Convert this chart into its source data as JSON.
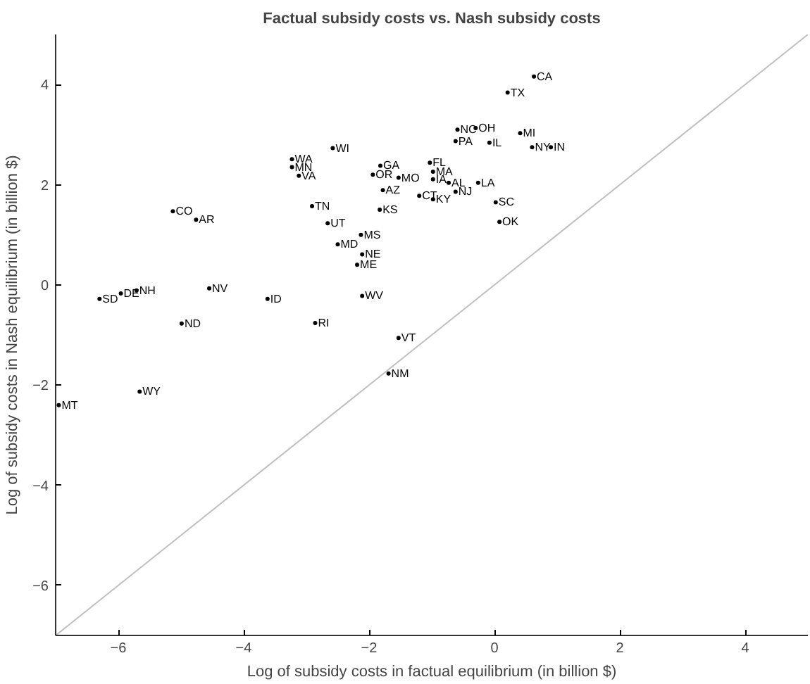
{
  "chart_data": {
    "type": "scatter",
    "title": "Factual subsidy costs vs. Nash subsidy costs",
    "xlabel": "Log of subsidy costs in factual equilibrium (in billion $)",
    "ylabel": "Log of subsidy costs in Nash equilibrium (in billion $)",
    "xlim": [
      -7,
      5
    ],
    "ylim": [
      -7,
      5
    ],
    "xticks": [
      -6,
      -4,
      -2,
      0,
      2,
      4
    ],
    "yticks": [
      -6,
      -4,
      -2,
      0,
      2,
      4
    ],
    "grid": false,
    "series": [
      {
        "type": "scatter",
        "color": "#000000",
        "marker": "circle",
        "x": [
          0.63,
          0.21,
          -0.59,
          -0.3,
          -0.62,
          -0.08,
          0.41,
          0.6,
          0.9,
          -2.58,
          -3.23,
          -3.23,
          -3.12,
          -1.82,
          -1.94,
          -1.53,
          -1.78,
          -1.03,
          -0.98,
          -0.98,
          -0.73,
          -0.62,
          -0.26,
          -1.2,
          -0.98,
          0.02,
          0.08,
          -2.91,
          -1.83,
          -2.66,
          -2.13,
          -2.5,
          -2.11,
          -2.19,
          -5.13,
          -4.76,
          -6.3,
          -5.96,
          -5.71,
          -4.55,
          -4.99,
          -3.62,
          -2.86,
          -2.11,
          -5.66,
          -6.95,
          -1.53,
          -1.69
        ],
        "values": [
          4.16,
          3.84,
          3.1,
          3.13,
          2.87,
          2.84,
          3.03,
          2.75,
          2.75,
          2.73,
          2.51,
          2.35,
          2.18,
          2.38,
          2.2,
          2.14,
          1.89,
          2.44,
          2.26,
          2.11,
          2.04,
          1.86,
          2.04,
          1.78,
          1.71,
          1.65,
          1.26,
          1.57,
          1.5,
          1.23,
          1.0,
          0.81,
          0.61,
          0.4,
          1.47,
          1.3,
          -0.28,
          -0.17,
          -0.11,
          -0.07,
          -0.77,
          -0.28,
          -0.76,
          -0.22,
          -2.13,
          -2.4,
          -1.06,
          -1.77
        ],
        "value_labels": [
          "CA",
          "TX",
          "NC",
          "OH",
          "PA",
          "IL",
          "MI",
          "NY",
          "IN",
          "WI",
          "WA",
          "MN",
          "VA",
          "GA",
          "OR",
          "MO",
          "AZ",
          "FL",
          "MA",
          "IA",
          "AL",
          "NJ",
          "LA",
          "CT",
          "KY",
          "SC",
          "OK",
          "TN",
          "KS",
          "UT",
          "MS",
          "MD",
          "NE",
          "ME",
          "CO",
          "AR",
          "SD",
          "DE",
          "NH",
          "NV",
          "ND",
          "ID",
          "RI",
          "WV",
          "WY",
          "MT",
          "VT",
          "NM"
        ]
      },
      {
        "type": "line",
        "color": "#c0c0c0",
        "x": [
          -7,
          5
        ],
        "values": [
          -7,
          5
        ]
      }
    ]
  }
}
